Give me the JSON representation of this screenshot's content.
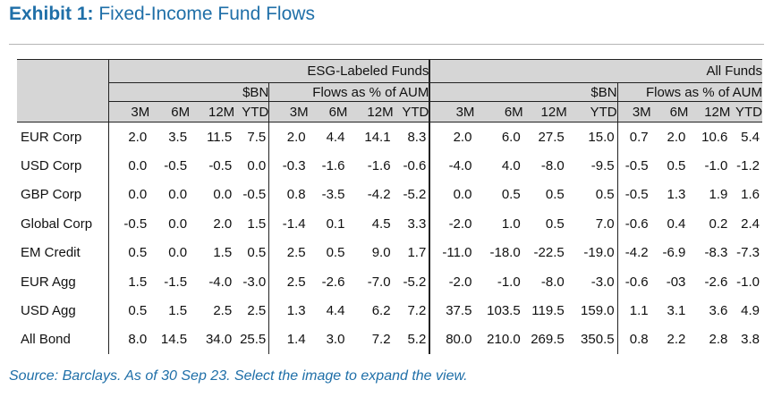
{
  "exhibit": {
    "label": "Exhibit 1:",
    "title": "Fixed-Income Fund Flows"
  },
  "table": {
    "groups": [
      "ESG-Labeled Funds",
      "All Funds"
    ],
    "subgroups": [
      "$BN",
      "Flows as % of AUM",
      "$BN",
      "Flows as % of AUM"
    ],
    "periods": [
      "3M",
      "6M",
      "12M",
      "YTD",
      "3M",
      "6M",
      "12M",
      "YTD",
      "3M",
      "6M",
      "12M",
      "YTD",
      "3M",
      "6M",
      "12M",
      "YTD"
    ],
    "rows": [
      {
        "label": "EUR Corp",
        "values": [
          "2.0",
          "3.5",
          "11.5",
          "7.5",
          "2.0",
          "4.4",
          "14.1",
          "8.3",
          "2.0",
          "6.0",
          "27.5",
          "15.0",
          "0.7",
          "2.0",
          "10.6",
          "5.4"
        ]
      },
      {
        "label": "USD Corp",
        "values": [
          "0.0",
          "-0.5",
          "-0.5",
          "0.0",
          "-0.3",
          "-1.6",
          "-1.6",
          "-0.6",
          "-4.0",
          "4.0",
          "-8.0",
          "-9.5",
          "-0.5",
          "0.5",
          "-1.0",
          "-1.2"
        ]
      },
      {
        "label": "GBP Corp",
        "values": [
          "0.0",
          "0.0",
          "0.0",
          "-0.5",
          "0.8",
          "-3.5",
          "-4.2",
          "-5.2",
          "0.0",
          "0.5",
          "0.5",
          "0.5",
          "-0.5",
          "1.3",
          "1.9",
          "1.6"
        ]
      },
      {
        "label": "Global Corp",
        "values": [
          "-0.5",
          "0.0",
          "2.0",
          "1.5",
          "-1.4",
          "0.1",
          "4.5",
          "3.3",
          "-2.0",
          "1.0",
          "0.5",
          "7.0",
          "-0.6",
          "0.4",
          "0.2",
          "2.4"
        ]
      },
      {
        "label": "EM Credit",
        "values": [
          "0.5",
          "0.0",
          "1.5",
          "0.5",
          "2.5",
          "0.5",
          "9.0",
          "1.7",
          "-11.0",
          "-18.0",
          "-22.5",
          "-19.0",
          "-4.2",
          "-6.9",
          "-8.3",
          "-7.3"
        ]
      },
      {
        "label": "EUR Agg",
        "values": [
          "1.5",
          "-1.5",
          "-4.0",
          "-3.0",
          "2.5",
          "-2.6",
          "-7.0",
          "-5.2",
          "-2.0",
          "-1.0",
          "-8.0",
          "-3.0",
          "-0.6",
          "-03",
          "-2.6",
          "-1.0"
        ]
      },
      {
        "label": "USD Agg",
        "values": [
          "0.5",
          "1.5",
          "2.5",
          "2.5",
          "1.3",
          "4.4",
          "6.2",
          "7.2",
          "37.5",
          "103.5",
          "119.5",
          "159.0",
          "1.1",
          "3.1",
          "3.6",
          "4.9"
        ]
      },
      {
        "label": "All Bond",
        "values": [
          "8.0",
          "14.5",
          "34.0",
          "25.5",
          "1.4",
          "3.0",
          "7.2",
          "5.2",
          "80.0",
          "210.0",
          "269.5",
          "350.5",
          "0.8",
          "2.2",
          "2.8",
          "3.8"
        ]
      }
    ]
  },
  "source": "Source: Barclays. As of 30 Sep 23. Select the image to expand the view.",
  "colors": {
    "accent": "#1f6fa8",
    "header_bg": "#d6d6d6",
    "rule": "#b5b5b5"
  }
}
